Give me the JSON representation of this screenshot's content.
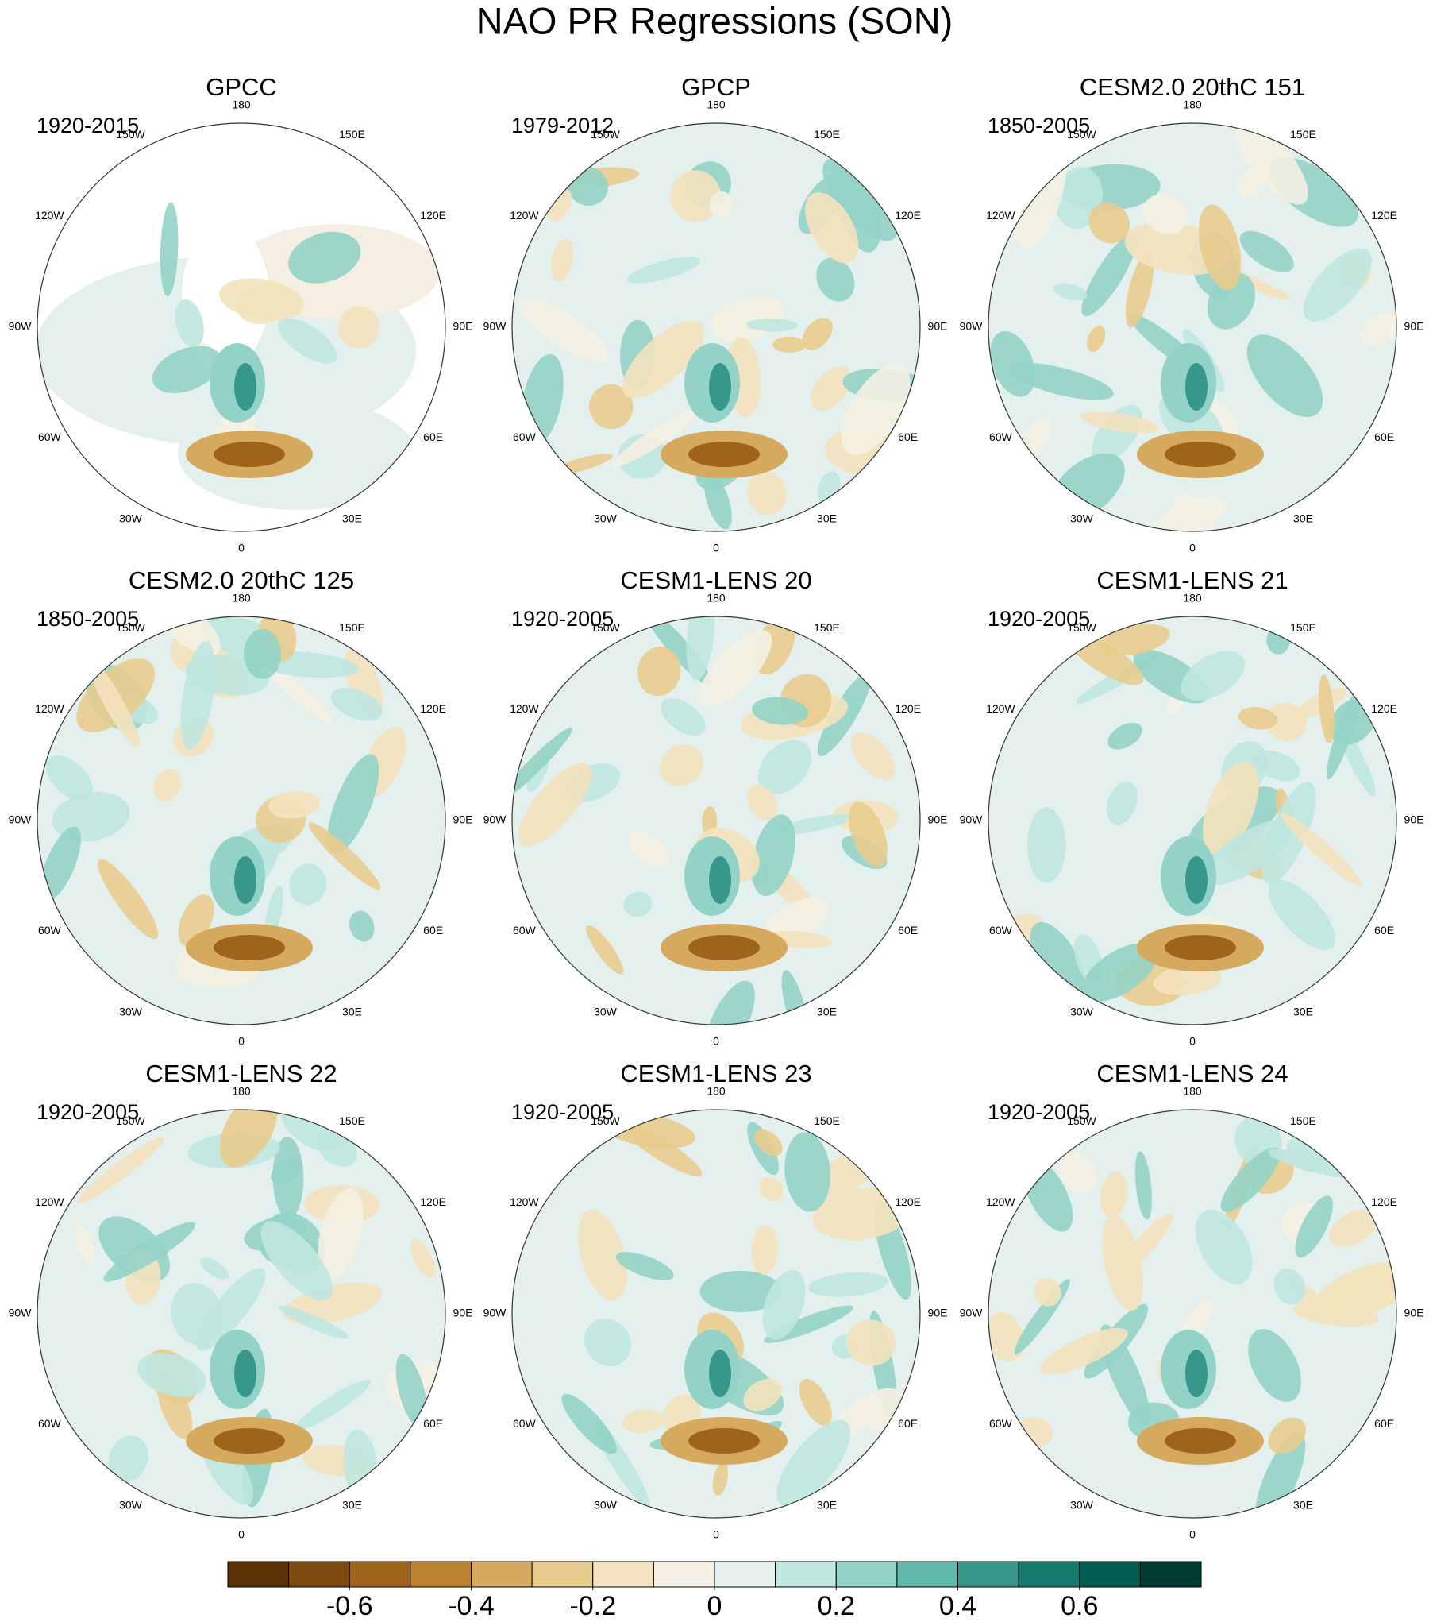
{
  "title": "NAO PR Regressions (SON)",
  "panels": [
    {
      "title": "GPCC",
      "period": "1920-2015"
    },
    {
      "title": "GPCP",
      "period": "1979-2012"
    },
    {
      "title": "CESM2.0 20thC 151",
      "period": "1850-2005"
    },
    {
      "title": "CESM2.0 20thC 125",
      "period": "1850-2005"
    },
    {
      "title": "CESM1-LENS 20",
      "period": "1920-2005"
    },
    {
      "title": "CESM1-LENS 21",
      "period": "1920-2005"
    },
    {
      "title": "CESM1-LENS 22",
      "period": "1920-2005"
    },
    {
      "title": "CESM1-LENS 23",
      "period": "1920-2005"
    },
    {
      "title": "CESM1-LENS 24",
      "period": "1920-2005"
    }
  ],
  "lon_labels": [
    "0",
    "30E",
    "60E",
    "90E",
    "120E",
    "150E",
    "180",
    "150W",
    "120W",
    "90W",
    "60W",
    "30W"
  ],
  "colorbar": {
    "lim": [
      -0.8,
      0.8
    ],
    "colors": [
      "#5a3205",
      "#7f4a0f",
      "#a0631a",
      "#bd8231",
      "#d5aa5f",
      "#e8cc8e",
      "#f3e2bd",
      "#f4efe2",
      "#e3f0ee",
      "#bfe6df",
      "#93d3c7",
      "#5fb8a9",
      "#36978a",
      "#177a6e",
      "#045d53",
      "#003c32"
    ],
    "ticks": [
      -0.6,
      -0.4,
      -0.2,
      0,
      0.2,
      0.4,
      0.6
    ]
  }
}
